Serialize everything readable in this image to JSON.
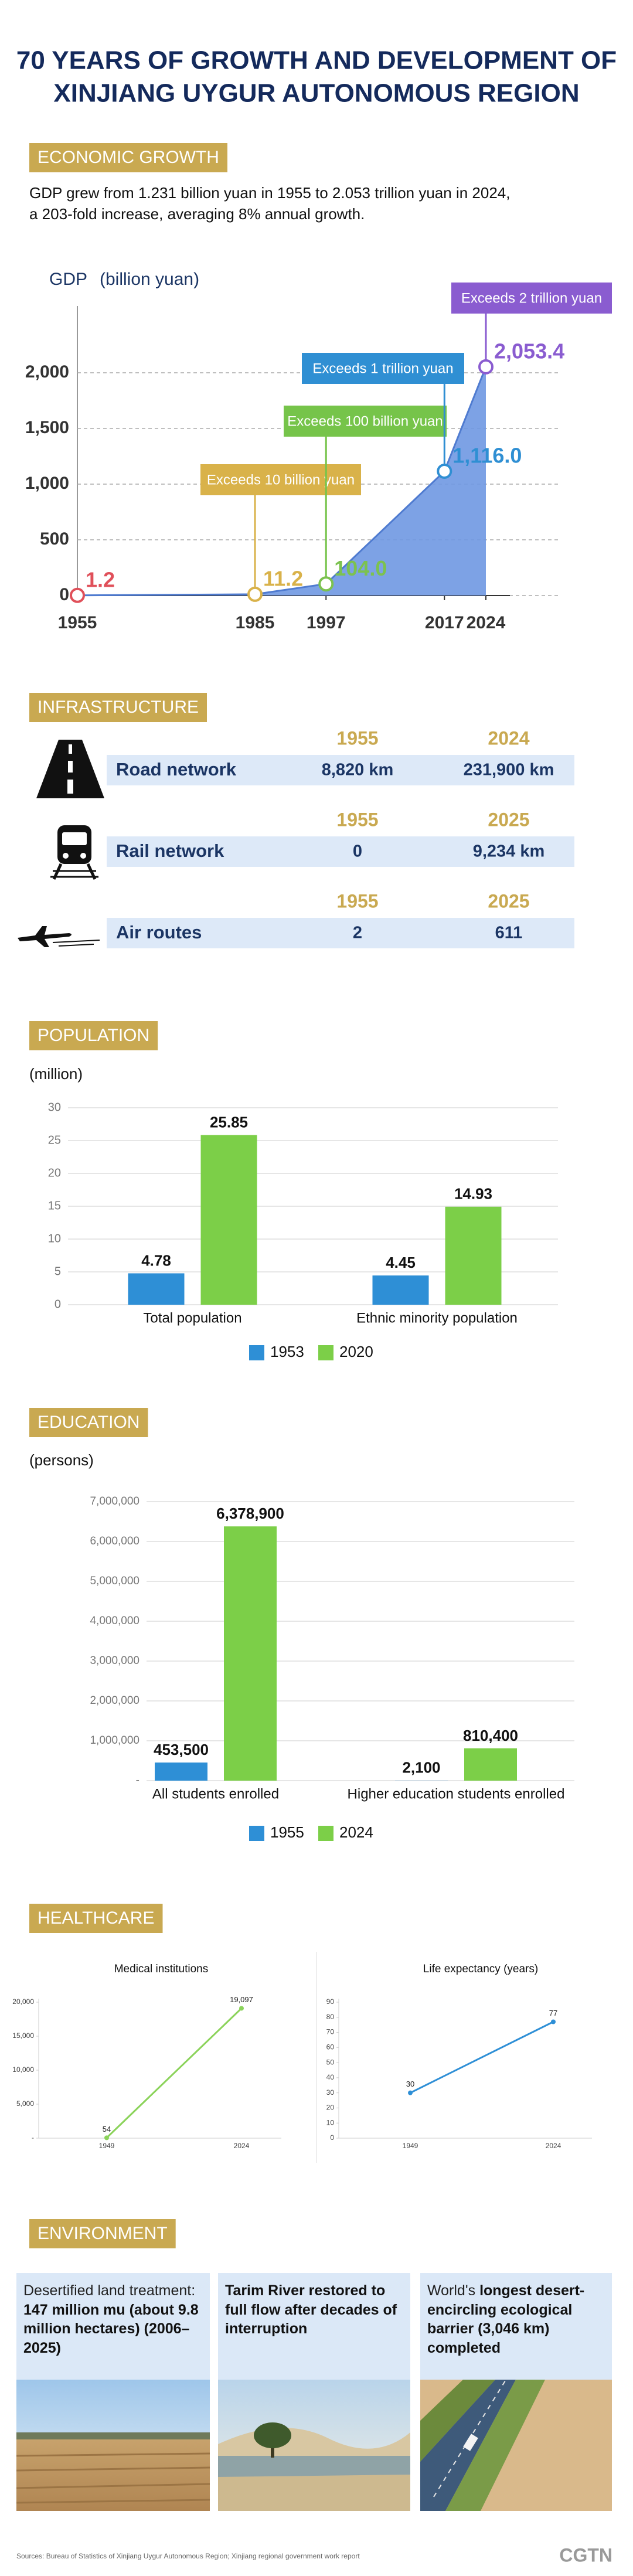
{
  "header": {
    "title": [
      "70 YEARS OF GROWTH AND DEVELOPMENT OF",
      "XINJIANG UYGUR AUTONOMOUS REGION"
    ]
  },
  "sections": {
    "economy": {
      "heading": "ECONOMIC GROWTH",
      "text": [
        "GDP grew from 1.231 billion yuan in 1955 to 2.053 trillion yuan in 2024,",
        "a 203-fold increase, averaging 8% annual growth."
      ]
    },
    "infrastructure": {
      "heading": "INFRASTRUCTURE",
      "rows": [
        {
          "label": "Road network",
          "years": [
            "1955",
            "2024"
          ],
          "values": [
            "8,820 km",
            "231,900 km"
          ]
        },
        {
          "label": "Rail network",
          "years": [
            "1955",
            "2025"
          ],
          "values": [
            "0",
            "9,234 km"
          ]
        },
        {
          "label": "Air routes",
          "years": [
            "1955",
            "2025"
          ],
          "values": [
            "2",
            "611"
          ]
        }
      ]
    },
    "population": {
      "heading": "POPULATION"
    },
    "education": {
      "heading": "EDUCATION"
    },
    "healthcare": {
      "heading": "HEALTHCARE"
    },
    "environment": {
      "heading": "ENVIRONMENT",
      "cards": [
        {
          "lead": "Desertified land treatment: ",
          "emphasis": "147 million mu (about 9.8 million hectares) (2006–2025)"
        },
        {
          "emphasis": "Tarim River restored to full flow after decades of interruption"
        },
        {
          "lead": "World's ",
          "emphasis": "longest desert-encircling ecological barrier (3,046 km) completed"
        }
      ]
    }
  },
  "chart_data": [
    {
      "type": "area",
      "ylabel": "GDP",
      "ylabel_unit": "(billion yuan)",
      "x": [
        1955,
        1985,
        1997,
        2017,
        2024
      ],
      "values": [
        1.2,
        11.2,
        104.0,
        1116.0,
        2053.4
      ],
      "value_labels": [
        "1.2",
        "11.2",
        "104.0",
        "1,116.0",
        "2,053.4"
      ],
      "point_colors": [
        "#e0505a",
        "#d9b24a",
        "#7cc24f",
        "#2f8fd3",
        "#8a5cd0"
      ],
      "color": "#6f98e2",
      "xlim": [
        1955,
        2024
      ],
      "xticks": [
        1955,
        1985,
        1997,
        2017,
        2024
      ],
      "ylim": [
        0,
        2600
      ],
      "yticks": [
        0,
        500,
        {
          "value": 1000,
          "label": "1,000"
        },
        {
          "value": 1500,
          "label": "1,500"
        },
        {
          "value": 2000,
          "label": "2,000"
        }
      ],
      "grid": true,
      "annotations": [
        {
          "text": "Exceeds 10 billion yuan",
          "color": "#d9b24a"
        },
        {
          "text": "Exceeds 100 billion yuan",
          "color": "#76c44a"
        },
        {
          "text": "Exceeds 1 trillion yuan",
          "color": "#2f8fd3"
        },
        {
          "text": "Exceeds 2 trillion yuan",
          "color": "#8a5cd0"
        }
      ]
    },
    {
      "type": "bar",
      "ylabel": "(million)",
      "categories": [
        "Total population",
        "Ethnic minority population"
      ],
      "series": [
        {
          "name": "1953",
          "color": "#2e8fd6",
          "values": [
            4.78,
            4.45
          ]
        },
        {
          "name": "2020",
          "color": "#7ccf48",
          "values": [
            25.85,
            14.93
          ]
        }
      ],
      "ylim": [
        0,
        30
      ],
      "yticks": [
        0,
        5,
        10,
        15,
        20,
        25,
        30
      ],
      "grid": true,
      "legend": "bottom"
    },
    {
      "type": "bar",
      "ylabel": "(persons)",
      "categories": [
        "All students enrolled",
        "Higher education students enrolled"
      ],
      "series": [
        {
          "name": "1955",
          "color": "#2e8fd6",
          "values": [
            453500,
            2100
          ],
          "value_labels": [
            "453,500",
            "2,100"
          ]
        },
        {
          "name": "2024",
          "color": "#7ccf48",
          "values": [
            6378900,
            810400
          ],
          "value_labels": [
            "6,378,900",
            "810,400"
          ]
        }
      ],
      "ylim": [
        0,
        7000000
      ],
      "yticks": [
        {
          "value": 0,
          "label": "-"
        },
        {
          "value": 1000000,
          "label": "1,000,000"
        },
        {
          "value": 2000000,
          "label": "2,000,000"
        },
        {
          "value": 3000000,
          "label": "3,000,000"
        },
        {
          "value": 4000000,
          "label": "4,000,000"
        },
        {
          "value": 5000000,
          "label": "5,000,000"
        },
        {
          "value": 6000000,
          "label": "6,000,000"
        },
        {
          "value": 7000000,
          "label": "7,000,000"
        }
      ],
      "grid": true,
      "legend": "bottom"
    },
    {
      "type": "line",
      "title": "Medical institutions",
      "categories": [
        "1949",
        "2024"
      ],
      "values": [
        54,
        19097
      ],
      "value_labels": [
        "54",
        "19,097"
      ],
      "color": "#8bd35a",
      "ylim": [
        0,
        20000
      ],
      "yticks": [
        {
          "value": 0,
          "label": "-"
        },
        {
          "value": 5000,
          "label": "5,000"
        },
        {
          "value": 10000,
          "label": "10,000"
        },
        {
          "value": 15000,
          "label": "15,000"
        },
        {
          "value": 20000,
          "label": "20,000"
        }
      ]
    },
    {
      "type": "line",
      "title": "Life expectancy (years)",
      "categories": [
        "1949",
        "2024"
      ],
      "values": [
        30,
        77
      ],
      "color": "#2e8fd6",
      "ylim": [
        0,
        90
      ],
      "yticks": [
        0,
        10,
        20,
        30,
        40,
        50,
        60,
        70,
        80,
        90
      ]
    }
  ],
  "footer": {
    "sources": "Sources: Bureau of Statistics of Xinjiang Uygur Autonomous Region; Xinjiang regional government work report",
    "logo": "CGTN"
  }
}
